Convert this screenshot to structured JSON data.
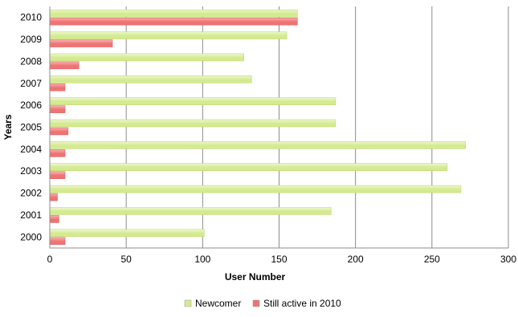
{
  "chart_data": {
    "type": "bar",
    "orientation": "horizontal",
    "categories": [
      "2000",
      "2001",
      "2002",
      "2003",
      "2004",
      "2005",
      "2006",
      "2007",
      "2008",
      "2009",
      "2010"
    ],
    "series": [
      {
        "name": "Newcomer",
        "color": "#d4ea8f",
        "values": [
          101,
          184,
          269,
          260,
          272,
          187,
          187,
          132,
          127,
          155,
          162
        ]
      },
      {
        "name": "Still active in 2010",
        "color": "#ef7373",
        "values": [
          10,
          6,
          5,
          10,
          10,
          12,
          10,
          10,
          19,
          41,
          162
        ]
      }
    ],
    "xlabel": "User Number",
    "ylabel": "Years",
    "xlim": [
      0,
      300
    ],
    "xticks": [
      "0",
      "50",
      "100",
      "150",
      "200",
      "250",
      "300"
    ],
    "grid": "vertical",
    "legend_position": "bottom"
  }
}
